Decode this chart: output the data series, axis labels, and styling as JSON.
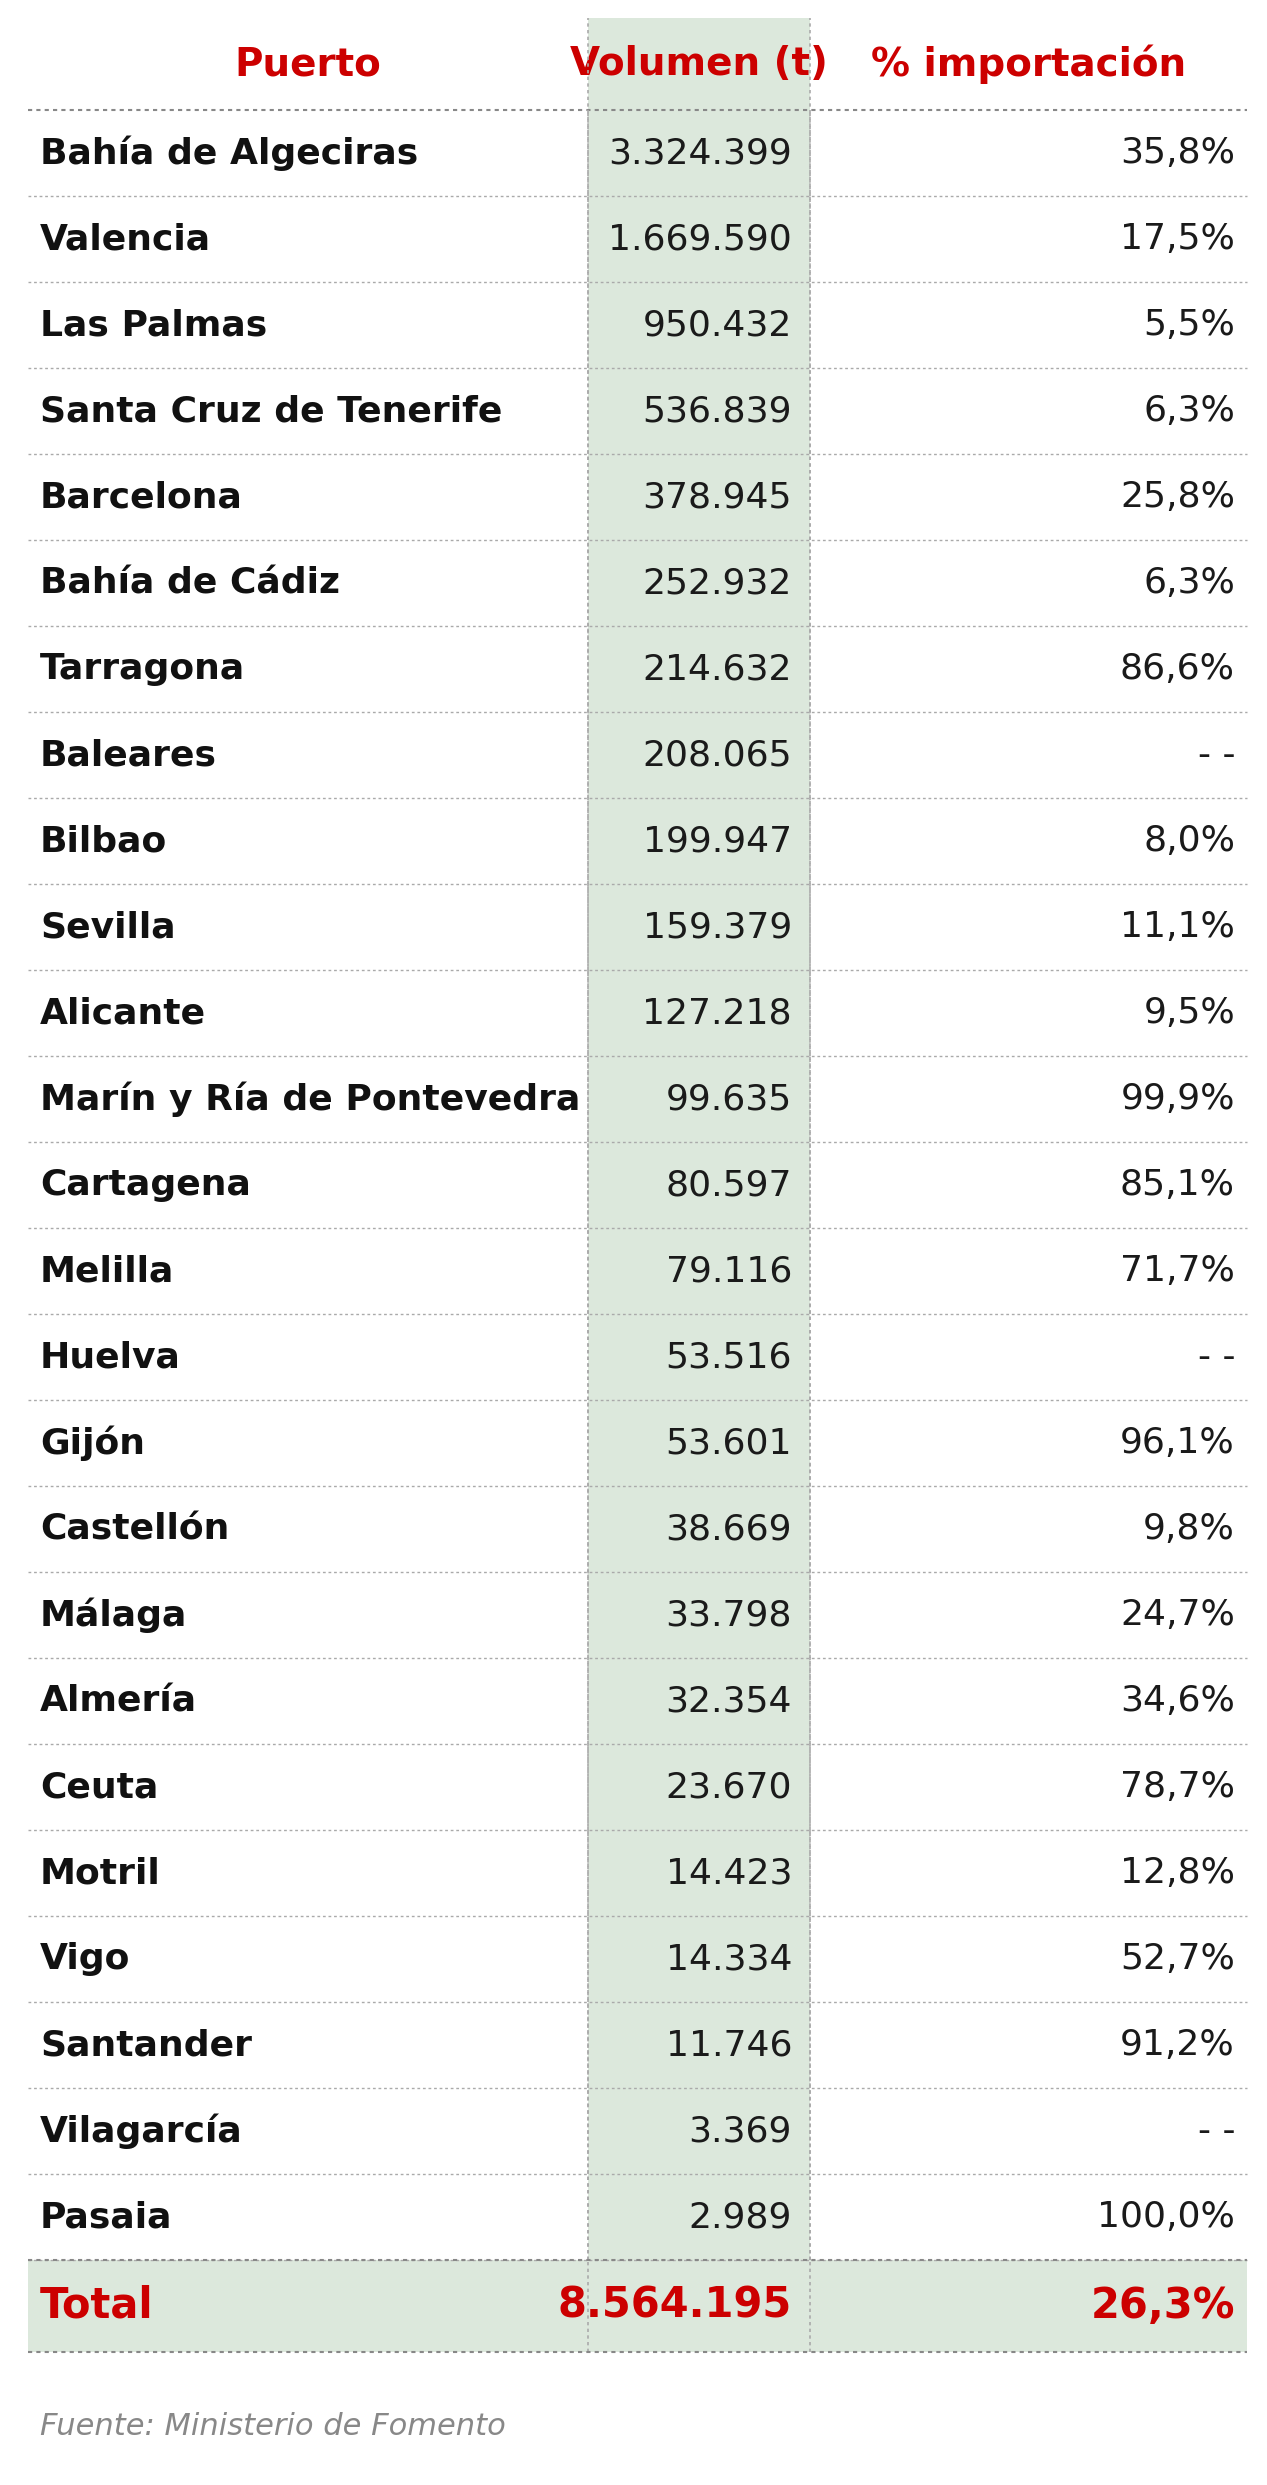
{
  "header": [
    "Puerto",
    "Volumen (t)",
    "% importación"
  ],
  "rows": [
    [
      "Bahía de Algeciras",
      "3.324.399",
      "35,8%"
    ],
    [
      "Valencia",
      "1.669.590",
      "17,5%"
    ],
    [
      "Las Palmas",
      "950.432",
      "5,5%"
    ],
    [
      "Santa Cruz de Tenerife",
      "536.839",
      "6,3%"
    ],
    [
      "Barcelona",
      "378.945",
      "25,8%"
    ],
    [
      "Bahía de Cádiz",
      "252.932",
      "6,3%"
    ],
    [
      "Tarragona",
      "214.632",
      "86,6%"
    ],
    [
      "Baleares",
      "208.065",
      "- -"
    ],
    [
      "Bilbao",
      "199.947",
      "8,0%"
    ],
    [
      "Sevilla",
      "159.379",
      "11,1%"
    ],
    [
      "Alicante",
      "127.218",
      "9,5%"
    ],
    [
      "Marín y Ría de Pontevedra",
      "99.635",
      "99,9%"
    ],
    [
      "Cartagena",
      "80.597",
      "85,1%"
    ],
    [
      "Melilla",
      "79.116",
      "71,7%"
    ],
    [
      "Huelva",
      "53.516",
      "- -"
    ],
    [
      "Gijón",
      "53.601",
      "96,1%"
    ],
    [
      "Castellón",
      "38.669",
      "9,8%"
    ],
    [
      "Málaga",
      "33.798",
      "24,7%"
    ],
    [
      "Almería",
      "32.354",
      "34,6%"
    ],
    [
      "Ceuta",
      "23.670",
      "78,7%"
    ],
    [
      "Motril",
      "14.423",
      "12,8%"
    ],
    [
      "Vigo",
      "14.334",
      "52,7%"
    ],
    [
      "Santander",
      "11.746",
      "91,2%"
    ],
    [
      "Vilagarcía",
      "3.369",
      "- -"
    ],
    [
      "Pasaia",
      "2.989",
      "100,0%"
    ]
  ],
  "total_row": [
    "Total",
    "8.564.195",
    "26,3%"
  ],
  "footer": "Fuente: Ministerio de Fomento",
  "header_color": "#CC0000",
  "total_color": "#CC0000",
  "row_text_color": "#1a1a1a",
  "col0_bold_color": "#111111",
  "divider_color": "#aaaaaa",
  "total_bg_color": "#dce8dc",
  "mid_col_bg_color": "#dce8dc",
  "background_color": "#ffffff",
  "footer_color": "#888888",
  "header_fontsize": 28,
  "row_fontsize": 26,
  "total_fontsize": 30,
  "footer_fontsize": 22
}
